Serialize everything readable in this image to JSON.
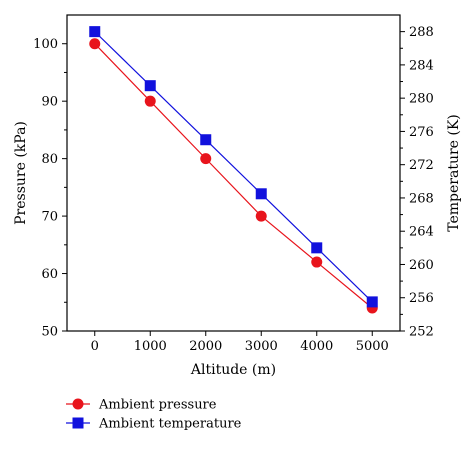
{
  "chart_data": {
    "type": "line",
    "x": [
      0,
      1000,
      2000,
      3000,
      4000,
      5000
    ],
    "xlabel": "Altitude (m)",
    "xlim": [
      -500,
      5500
    ],
    "xticks": [
      "0",
      "1000",
      "2000",
      "3000",
      "4000",
      "5000"
    ],
    "ylabel_left": "Pressure (kPa)",
    "ylim_left": [
      50,
      105
    ],
    "yticks_left": [
      "50",
      "60",
      "70",
      "80",
      "90",
      "100"
    ],
    "ylabel_right": "Temperature (K)",
    "ylim_right": [
      252,
      290
    ],
    "yticks_right": [
      "252",
      "256",
      "260",
      "264",
      "268",
      "272",
      "276",
      "280",
      "284",
      "288"
    ],
    "series": [
      {
        "name": "Ambient pressure",
        "axis": "left",
        "marker": "circle",
        "color": "#e8141c",
        "values": [
          100,
          90,
          80,
          70,
          62,
          54
        ]
      },
      {
        "name": "Ambient temperature",
        "axis": "right",
        "marker": "square",
        "color": "#1111dd",
        "values": [
          288,
          281.5,
          275,
          268.5,
          262,
          255.5
        ]
      }
    ],
    "legend_position": "bottom-left",
    "grid": false
  }
}
